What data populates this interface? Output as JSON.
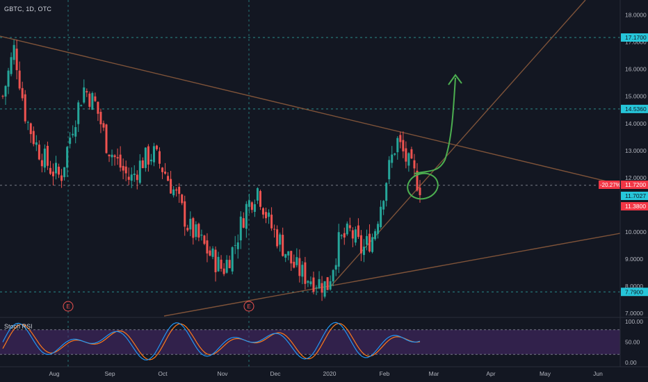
{
  "header": {
    "symbol_line": "GBTC, 1D, OTC"
  },
  "colors": {
    "background": "#131722",
    "up": "#26a69a",
    "down": "#ef5350",
    "dash": "#2b8c8c",
    "trend": "#8b5a3c",
    "annotation": "#4caf50",
    "stoch_k": "#2196f3",
    "stoch_d": "#ff7a1a",
    "stoch_band": "#4a2a6e"
  },
  "chart_data": {
    "type": "candlestick",
    "title": "GBTC, 1D, OTC",
    "y_ticks": [
      "18.0000",
      "17.0000",
      "16.0000",
      "15.0000",
      "14.0000",
      "13.0000",
      "12.0000",
      "11.0000",
      "10.0000",
      "9.0000",
      "8.0000",
      "7.0000"
    ],
    "ylim": [
      6.9,
      18.4
    ],
    "x_ticks": [
      "Aug",
      "Sep",
      "Oct",
      "Nov",
      "Dec",
      "2020",
      "Feb",
      "Mar",
      "Apr",
      "May",
      "Jun"
    ],
    "price_tags": [
      {
        "label": "17.1700",
        "value": 17.17,
        "style": "cyan"
      },
      {
        "label": "14.5360",
        "value": 14.536,
        "style": "cyan"
      },
      {
        "label": "11.7200",
        "value": 11.72,
        "style": "red"
      },
      {
        "label": "11.7027",
        "value": 11.7027,
        "style": "cyan"
      },
      {
        "label": "11.3800",
        "value": 11.38,
        "style": "red"
      },
      {
        "label": "7.7900",
        "value": 7.79,
        "style": "cyan"
      }
    ],
    "change_badge": "-20.27%",
    "horizontal_levels": [
      17.17,
      14.536,
      11.72,
      7.79
    ],
    "earnings_marker": "E",
    "earnings_dates": [
      "Aug",
      "Nov"
    ],
    "trendlines": [
      {
        "from": [
          "Jul",
          17.2
        ],
        "to": [
          "Jun",
          11.75
        ]
      },
      {
        "from": [
          "Dec",
          6.95
        ],
        "to": [
          "Jun",
          9.95
        ]
      },
      {
        "from": [
          "Dec",
          7.95
        ],
        "to": [
          "Jun",
          18.6
        ]
      }
    ],
    "series_close_approx": [
      15.0,
      16.8,
      14.2,
      13.1,
      12.4,
      12.0,
      13.9,
      15.3,
      14.7,
      13.2,
      12.5,
      11.9,
      12.6,
      12.9,
      12.2,
      11.3,
      10.2,
      9.7,
      9.1,
      8.6,
      9.5,
      10.9,
      11.6,
      10.3,
      9.6,
      8.8,
      8.4,
      8.2,
      8.0,
      9.6,
      10.0,
      9.3,
      9.9,
      11.8,
      13.4,
      12.5,
      11.7
    ]
  },
  "stoch_rsi": {
    "title": "Stoch RSI",
    "y_ticks": [
      "100.00",
      "50.00",
      "0.00"
    ],
    "levels": [
      80,
      20
    ]
  }
}
